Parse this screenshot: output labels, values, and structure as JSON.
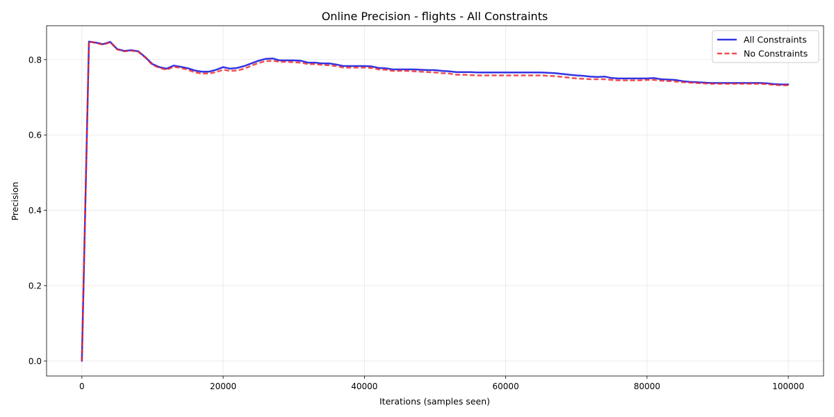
{
  "chart_data": {
    "type": "line",
    "title": "Online Precision - flights - All Constraints",
    "xlabel": "Iterations (samples seen)",
    "ylabel": "Precision",
    "xlim": [
      -5000,
      105000
    ],
    "ylim": [
      -0.04,
      0.89
    ],
    "xticks": [
      0,
      20000,
      40000,
      60000,
      80000,
      100000
    ],
    "yticks": [
      0.0,
      0.2,
      0.4,
      0.6,
      0.8
    ],
    "xtick_labels": [
      "0",
      "20000",
      "40000",
      "60000",
      "80000",
      "100000"
    ],
    "ytick_labels": [
      "0.0",
      "0.2",
      "0.4",
      "0.6",
      "0.8"
    ],
    "grid": true,
    "legend_position": "top-right",
    "series": [
      {
        "name": "All Constraints",
        "color": "#0000dd",
        "style": "solid",
        "x": [
          0,
          1000,
          2000,
          3000,
          4000,
          5000,
          6000,
          7000,
          8000,
          9000,
          10000,
          11000,
          12000,
          13000,
          14000,
          15000,
          16000,
          17000,
          18000,
          19000,
          20000,
          21000,
          22000,
          23000,
          24000,
          25000,
          26000,
          27000,
          28000,
          29000,
          30000,
          31000,
          32000,
          33000,
          34000,
          35000,
          36000,
          37000,
          38000,
          39000,
          40000,
          41000,
          42000,
          43000,
          44000,
          45000,
          46000,
          47000,
          48000,
          49000,
          50000,
          51000,
          52000,
          53000,
          54000,
          55000,
          56000,
          57000,
          58000,
          59000,
          60000,
          61000,
          62000,
          63000,
          64000,
          65000,
          66000,
          67000,
          68000,
          69000,
          70000,
          71000,
          72000,
          73000,
          74000,
          75000,
          76000,
          77000,
          78000,
          79000,
          80000,
          81000,
          82000,
          83000,
          84000,
          85000,
          86000,
          87000,
          88000,
          89000,
          90000,
          91000,
          92000,
          93000,
          94000,
          95000,
          96000,
          97000,
          98000,
          99000,
          100000
        ],
        "y": [
          0.0,
          0.848,
          0.845,
          0.841,
          0.847,
          0.828,
          0.823,
          0.825,
          0.822,
          0.806,
          0.788,
          0.78,
          0.776,
          0.784,
          0.781,
          0.777,
          0.771,
          0.768,
          0.768,
          0.773,
          0.78,
          0.776,
          0.778,
          0.783,
          0.79,
          0.797,
          0.802,
          0.803,
          0.798,
          0.798,
          0.798,
          0.797,
          0.792,
          0.792,
          0.79,
          0.79,
          0.787,
          0.783,
          0.783,
          0.783,
          0.783,
          0.782,
          0.778,
          0.777,
          0.774,
          0.774,
          0.774,
          0.774,
          0.773,
          0.772,
          0.772,
          0.77,
          0.769,
          0.767,
          0.767,
          0.767,
          0.766,
          0.766,
          0.766,
          0.766,
          0.766,
          0.766,
          0.766,
          0.766,
          0.766,
          0.766,
          0.765,
          0.764,
          0.762,
          0.76,
          0.758,
          0.757,
          0.755,
          0.754,
          0.755,
          0.751,
          0.75,
          0.75,
          0.75,
          0.75,
          0.75,
          0.751,
          0.748,
          0.747,
          0.746,
          0.743,
          0.741,
          0.74,
          0.739,
          0.738,
          0.738,
          0.738,
          0.738,
          0.738,
          0.738,
          0.738,
          0.738,
          0.737,
          0.735,
          0.734,
          0.734
        ]
      },
      {
        "name": "No Constraints",
        "color": "#ee2222",
        "style": "dashed",
        "x": [
          0,
          1000,
          2000,
          3000,
          4000,
          5000,
          6000,
          7000,
          8000,
          9000,
          10000,
          11000,
          12000,
          13000,
          14000,
          15000,
          16000,
          17000,
          18000,
          19000,
          20000,
          21000,
          22000,
          23000,
          24000,
          25000,
          26000,
          27000,
          28000,
          29000,
          30000,
          31000,
          32000,
          33000,
          34000,
          35000,
          36000,
          37000,
          38000,
          39000,
          40000,
          41000,
          42000,
          43000,
          44000,
          45000,
          46000,
          47000,
          48000,
          49000,
          50000,
          51000,
          52000,
          53000,
          54000,
          55000,
          56000,
          57000,
          58000,
          59000,
          60000,
          61000,
          62000,
          63000,
          64000,
          65000,
          66000,
          67000,
          68000,
          69000,
          70000,
          71000,
          72000,
          73000,
          74000,
          75000,
          76000,
          77000,
          78000,
          79000,
          80000,
          81000,
          82000,
          83000,
          84000,
          85000,
          86000,
          87000,
          88000,
          89000,
          90000,
          91000,
          92000,
          93000,
          94000,
          95000,
          96000,
          97000,
          98000,
          99000,
          100000
        ],
        "y": [
          0.0,
          0.848,
          0.844,
          0.84,
          0.846,
          0.827,
          0.822,
          0.824,
          0.821,
          0.805,
          0.786,
          0.778,
          0.773,
          0.781,
          0.778,
          0.773,
          0.766,
          0.763,
          0.763,
          0.767,
          0.773,
          0.77,
          0.771,
          0.776,
          0.784,
          0.791,
          0.796,
          0.797,
          0.794,
          0.794,
          0.793,
          0.792,
          0.788,
          0.788,
          0.786,
          0.785,
          0.783,
          0.779,
          0.779,
          0.779,
          0.779,
          0.778,
          0.774,
          0.773,
          0.77,
          0.77,
          0.77,
          0.769,
          0.768,
          0.767,
          0.766,
          0.764,
          0.763,
          0.76,
          0.76,
          0.759,
          0.758,
          0.758,
          0.758,
          0.758,
          0.758,
          0.758,
          0.758,
          0.758,
          0.758,
          0.758,
          0.757,
          0.756,
          0.754,
          0.752,
          0.75,
          0.749,
          0.748,
          0.748,
          0.748,
          0.746,
          0.745,
          0.745,
          0.745,
          0.745,
          0.746,
          0.746,
          0.744,
          0.743,
          0.742,
          0.74,
          0.739,
          0.738,
          0.737,
          0.736,
          0.736,
          0.736,
          0.736,
          0.736,
          0.736,
          0.736,
          0.736,
          0.735,
          0.733,
          0.732,
          0.732
        ]
      }
    ]
  }
}
